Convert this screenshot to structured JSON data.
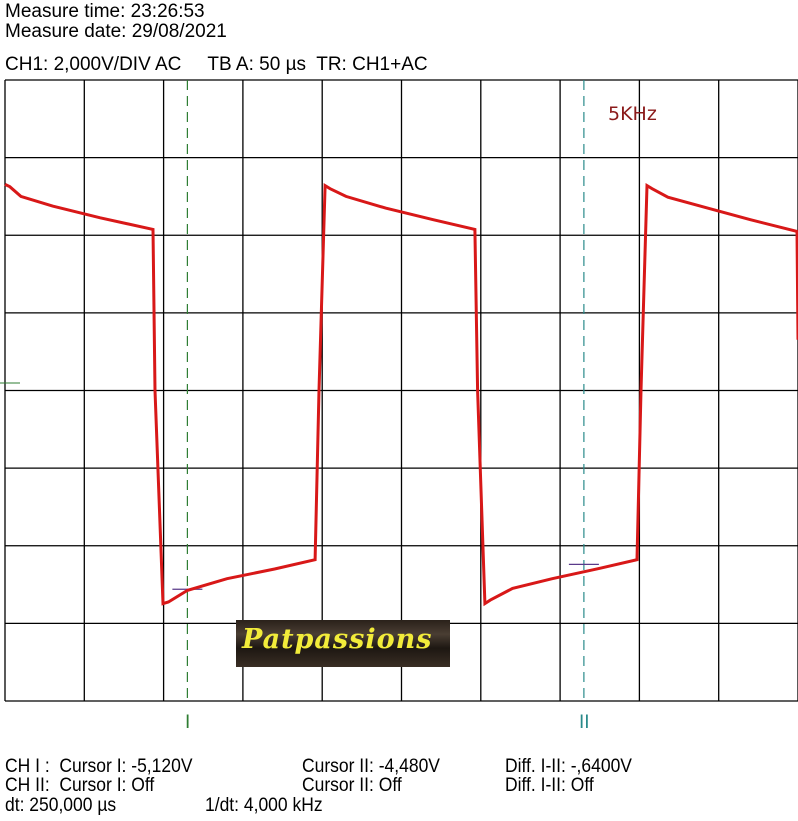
{
  "header": {
    "measure_time": "Measure time: 23:26:53",
    "measure_date": "Measure date: 29/08/2021",
    "settings": "CH1: 2,000V/DIV AC     TB A: 50 µs  TR: CH1+AC"
  },
  "annotation": "5KHz",
  "cursor_labels": {
    "cursor1": "I",
    "cursor2": "II"
  },
  "footer": {
    "ch1_label": "CH I :  Cursor I: -5,120V",
    "ch1_cursor2": "Cursor II: -4,480V",
    "ch1_diff": "Diff. I-II: -,6400V",
    "ch2_label": "CH II:  Cursor I: Off",
    "ch2_cursor2": "Cursor II: Off",
    "ch2_diff": "Diff. I-II: Off",
    "dt": "dt: 250,000 µs",
    "inv_dt": "1/dt: 4,000 kHz"
  },
  "logo_text": "Patpassions",
  "colors": {
    "trace": "#d81818",
    "cursor1": "#2e7d32",
    "cursor2": "#2a8a8a",
    "annotation": "#8b1a1a",
    "grid": "#000000"
  },
  "chart_data": {
    "type": "line",
    "xlim": [
      0,
      500
    ],
    "ylim": [
      -8,
      8
    ],
    "x_unit": "µs",
    "y_unit": "V",
    "x_divisions": 10,
    "y_divisions": 8,
    "grid": true,
    "series": [
      {
        "x": [
          0,
          3,
          10,
          30,
          60,
          93.3,
          94.6,
          99.6,
          103,
          115,
          140,
          170,
          195.5,
          198,
          201.8,
          205,
          215,
          240,
          270,
          296.3,
          298,
          302.6,
          306,
          320,
          345,
          375,
          398.5,
          401,
          404.8,
          408,
          418,
          443,
          470,
          499.4,
          500
        ],
        "y": [
          5.31,
          5.25,
          5.0,
          4.75,
          4.45,
          4.15,
          0,
          -5.49,
          -5.45,
          -5.15,
          -4.85,
          -4.6,
          -4.36,
          0,
          5.28,
          5.2,
          5.0,
          4.7,
          4.4,
          4.15,
          0,
          -5.49,
          -5.4,
          -5.1,
          -4.85,
          -4.58,
          -4.36,
          0,
          5.28,
          5.2,
          4.98,
          4.7,
          4.4,
          4.1,
          1.31
        ]
      }
    ],
    "cursors": [
      {
        "label": "I",
        "t": 115,
        "v": -5.12
      },
      {
        "label": "II",
        "t": 365,
        "v": -4.48
      }
    ]
  }
}
